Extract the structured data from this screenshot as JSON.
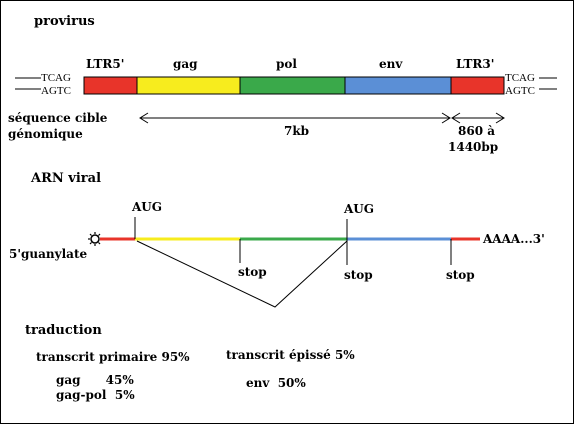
{
  "provirus": {
    "title": "provirus",
    "left_top_seq": "TCAG",
    "left_bottom_seq": "AGTC",
    "right_top_seq": "TCAG",
    "right_bottom_seq": "AGTC",
    "segments": [
      {
        "label": "LTR5'",
        "color": "#e8342a"
      },
      {
        "label": "gag",
        "color": "#f7ec1e"
      },
      {
        "label": "pol",
        "color": "#3aa94a"
      },
      {
        "label": "env",
        "color": "#5b8fd6"
      },
      {
        "label": "LTR3'",
        "color": "#e8342a"
      }
    ],
    "target_label_line1": "séquence cible",
    "target_label_line2": "génomique",
    "length_main": "7kb",
    "length_ltr_line1": "860 à",
    "length_ltr_line2": "1440bp"
  },
  "arn": {
    "title": "ARN viral",
    "cap_label": "5'guanylate",
    "aug1": "AUG",
    "aug2": "AUG",
    "stop1": "stop",
    "stop2": "stop",
    "stop3": "stop",
    "tail": "AAAA...3'"
  },
  "traduction": {
    "title": "traduction",
    "primary": "transcrit primaire 95%",
    "spliced": "transcrit épissé 5%",
    "gag": "gag      45%",
    "gagpol": "gag-pol  5%",
    "env": "env  50%"
  }
}
